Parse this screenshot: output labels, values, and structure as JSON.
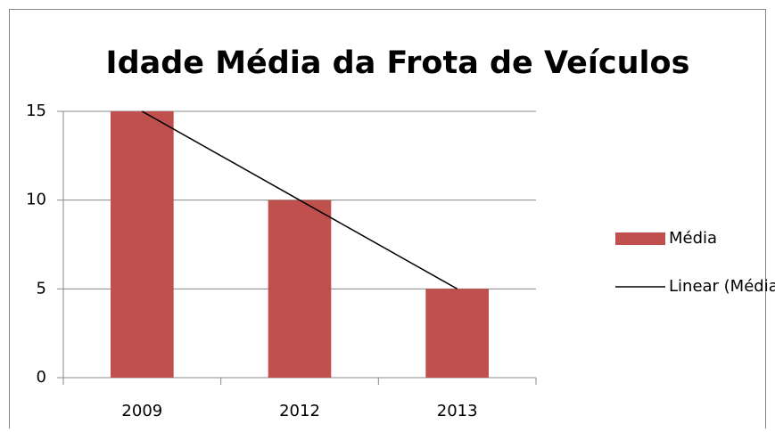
{
  "chart_data": {
    "type": "bar",
    "title": "Idade Média da Frota de Veículos",
    "categories": [
      "2009",
      "2012",
      "2013"
    ],
    "series": [
      {
        "name": "Média",
        "color": "#c0504d",
        "values": [
          15,
          10,
          5
        ]
      }
    ],
    "trendline": {
      "name": "Linear (Média)",
      "color": "#000000",
      "values": [
        15,
        10,
        5
      ]
    },
    "ylim": [
      0,
      15
    ],
    "yticks": [
      0,
      5,
      10,
      15
    ],
    "grid": true,
    "legend": "right"
  }
}
